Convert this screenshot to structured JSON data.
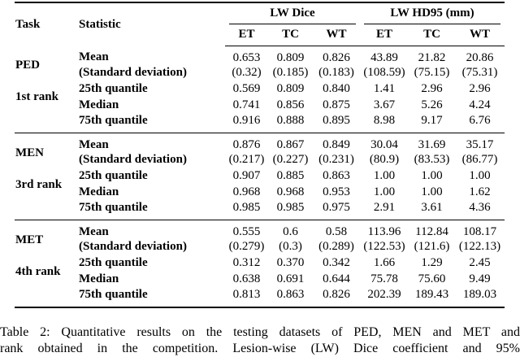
{
  "table": {
    "col_headers": {
      "task": "Task",
      "statistic": "Statistic",
      "group1": "LW Dice",
      "group2": "LW HD95 (mm)",
      "sub": [
        "ET",
        "TC",
        "WT",
        "ET",
        "TC",
        "WT"
      ]
    },
    "groups": [
      {
        "task": "PED",
        "rank": "1st rank",
        "rows": [
          {
            "stat": "Mean",
            "values": [
              "0.653",
              "0.809",
              "0.826",
              "43.89",
              "21.82",
              "20.86"
            ]
          },
          {
            "stat": "(Standard deviation)",
            "values": [
              "(0.32)",
              "(0.185)",
              "(0.183)",
              "(108.59)",
              "(75.15)",
              "(75.31)"
            ]
          },
          {
            "stat": "25th quantile",
            "values": [
              "0.569",
              "0.809",
              "0.840",
              "1.41",
              "2.96",
              "2.96"
            ]
          },
          {
            "stat": "Median",
            "values": [
              "0.741",
              "0.856",
              "0.875",
              "3.67",
              "5.26",
              "4.24"
            ]
          },
          {
            "stat": "75th quantile",
            "values": [
              "0.916",
              "0.888",
              "0.895",
              "8.98",
              "9.17",
              "6.76"
            ]
          }
        ]
      },
      {
        "task": "MEN",
        "rank": "3rd rank",
        "rows": [
          {
            "stat": "Mean",
            "values": [
              "0.876",
              "0.867",
              "0.849",
              "30.04",
              "31.69",
              "35.17"
            ]
          },
          {
            "stat": "(Standard deviation)",
            "values": [
              "(0.217)",
              "(0.227)",
              "(0.231)",
              "(80.9)",
              "(83.53)",
              "(86.77)"
            ]
          },
          {
            "stat": "25th quantile",
            "values": [
              "0.907",
              "0.885",
              "0.863",
              "1.00",
              "1.00",
              "1.00"
            ]
          },
          {
            "stat": "Median",
            "values": [
              "0.968",
              "0.968",
              "0.953",
              "1.00",
              "1.00",
              "1.62"
            ]
          },
          {
            "stat": "75th quantile",
            "values": [
              "0.985",
              "0.985",
              "0.975",
              "2.91",
              "3.61",
              "4.36"
            ]
          }
        ]
      },
      {
        "task": "MET",
        "rank": "4th rank",
        "rows": [
          {
            "stat": "Mean",
            "values": [
              "0.555",
              "0.6",
              "0.58",
              "113.96",
              "112.84",
              "108.17"
            ]
          },
          {
            "stat": "(Standard deviation)",
            "values": [
              "(0.279)",
              "(0.3)",
              "(0.289)",
              "(122.53)",
              "(121.6)",
              "(122.13)"
            ]
          },
          {
            "stat": "25th quantile",
            "values": [
              "0.312",
              "0.370",
              "0.342",
              "1.66",
              "1.29",
              "2.45"
            ]
          },
          {
            "stat": "Median",
            "values": [
              "0.638",
              "0.691",
              "0.644",
              "75.78",
              "75.60",
              "9.49"
            ]
          },
          {
            "stat": "75th quantile",
            "values": [
              "0.813",
              "0.863",
              "0.826",
              "202.39",
              "189.43",
              "189.03"
            ]
          }
        ]
      }
    ]
  },
  "caption": {
    "line1": "Table 2: Quantitative results on the testing datasets of PED, MEN and MET and",
    "line2": "rank obtained in the competition. Lesion-wise (LW) Dice coefficient and 95%"
  }
}
